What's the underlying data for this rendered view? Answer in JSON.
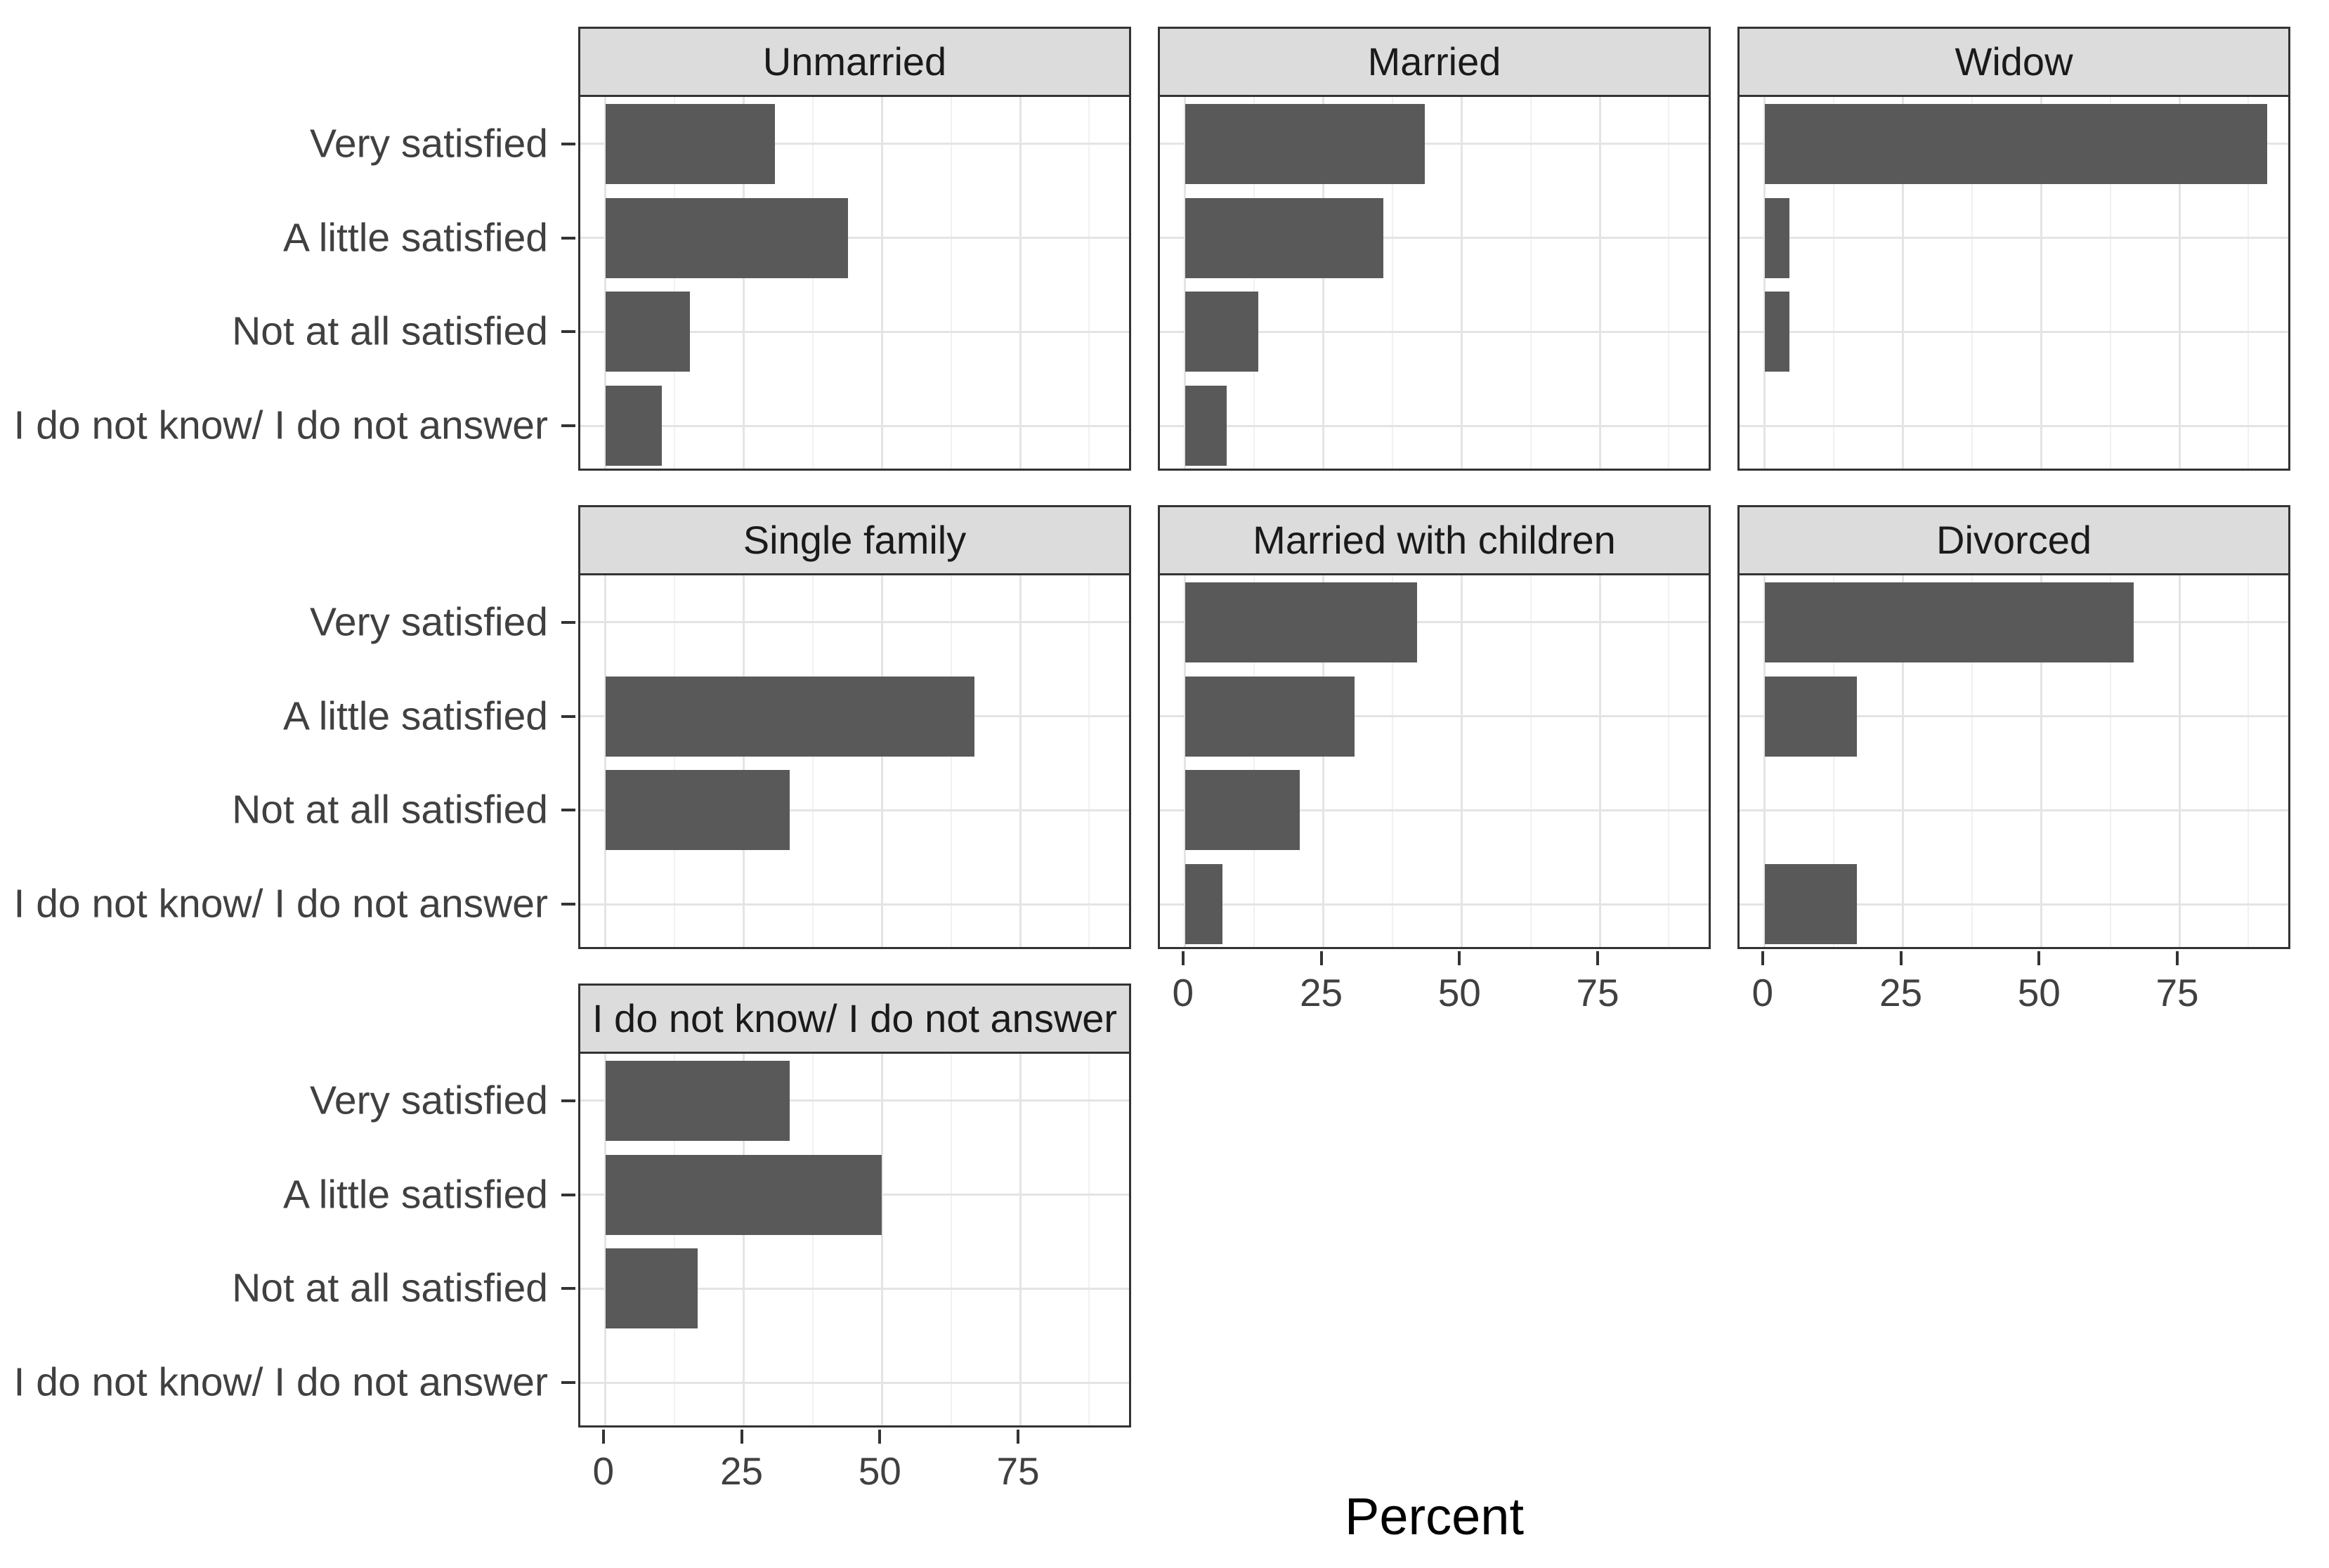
{
  "chart_data": {
    "type": "bar",
    "orientation": "horizontal",
    "title": "",
    "xlabel": "Percent",
    "ylabel": "",
    "x_ticks": [
      0,
      25,
      50,
      75
    ],
    "xlim": [
      0,
      95
    ],
    "grid": "major and minor vertical gridlines, major horizontal gridlines at category centers",
    "legend": "none",
    "facet_layout": "3 columns, 7 facets, last row has 1 facet",
    "categories": [
      "Very satisfied",
      "A little satisfied",
      "Not at all satisfied",
      "I do not know/ I do not answer"
    ],
    "facets": [
      {
        "label": "Unmarried",
        "values": [
          30.6,
          43.9,
          15.3,
          10.2
        ]
      },
      {
        "label": "Married",
        "values": [
          43.4,
          35.8,
          13.2,
          7.5
        ]
      },
      {
        "label": "Widow",
        "values": [
          90.9,
          4.5,
          4.5,
          0
        ]
      },
      {
        "label": "Single family",
        "values": [
          0,
          66.7,
          33.3,
          0
        ]
      },
      {
        "label": "Married with children",
        "values": [
          42.0,
          30.7,
          20.7,
          6.7
        ]
      },
      {
        "label": "Divorced",
        "values": [
          66.7,
          16.7,
          0,
          16.7
        ]
      },
      {
        "label": "I do not know/ I do not answer",
        "values": [
          33.3,
          50.0,
          16.7,
          0
        ]
      }
    ]
  },
  "colors": {
    "bar": "#595959",
    "strip_fill": "#dcdcdc",
    "border": "#333333",
    "grid_major": "#e4e4e4",
    "grid_minor": "#f1f1f1",
    "axis_text": "#404040",
    "strip_text": "#1a1a1a",
    "axis_title": "#000000",
    "background": "#ffffff"
  }
}
